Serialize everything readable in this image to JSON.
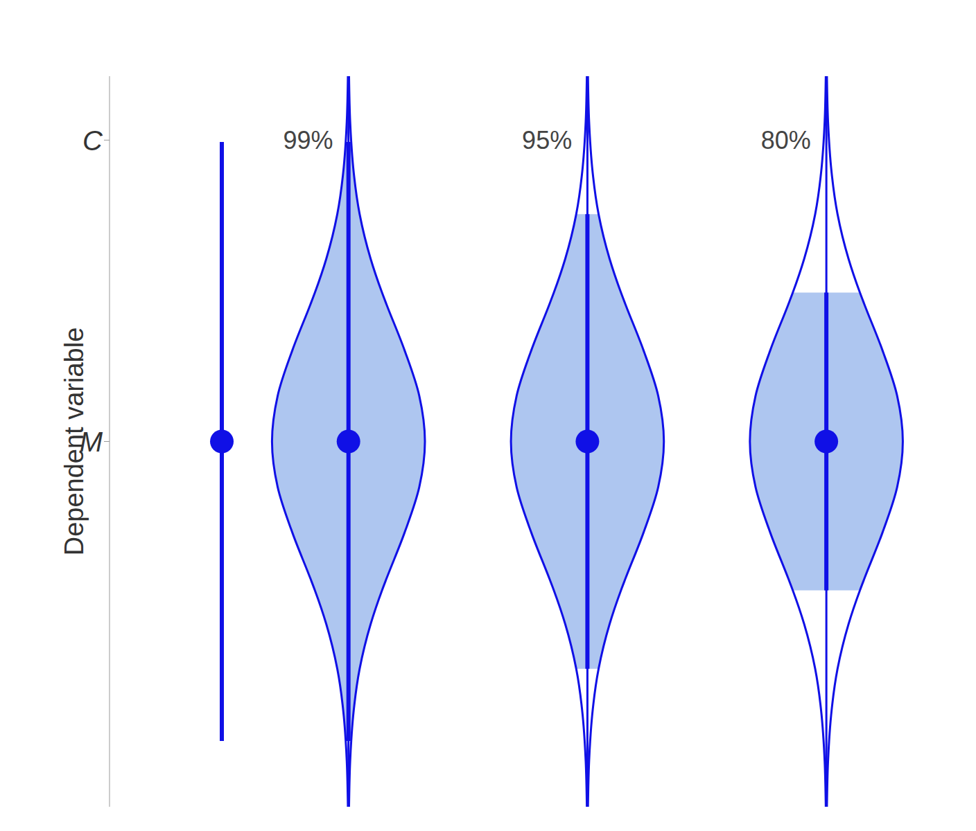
{
  "chart_data": {
    "type": "cat_eye",
    "y_label": "Dependent variable",
    "ylim": [
      -4,
      4
    ],
    "yticks": [
      {
        "value": 0,
        "label": "M"
      },
      {
        "value": -3.3,
        "label": "C"
      }
    ],
    "mean": 0,
    "color": "#1010e6",
    "marker": "circle",
    "intervals": [
      {
        "label": null,
        "moe": 3.28,
        "cat_eye": false
      },
      {
        "label": "99%",
        "moe": 3.28,
        "cat_eye": true
      },
      {
        "label": "95%",
        "moe": 2.49,
        "cat_eye": true
      },
      {
        "label": "80%",
        "moe": 1.63,
        "cat_eye": true
      }
    ],
    "profile": {
      "offset": [
        -4,
        -3.5,
        -3.28,
        -3,
        -2.49,
        -2,
        -1.63,
        -1.5,
        -1,
        -0.5,
        0,
        0.5,
        1,
        1.5,
        1.63,
        2,
        2.49,
        3,
        3.28,
        3.5,
        4
      ],
      "relative_width": [
        0.007,
        0.022,
        0.036,
        0.062,
        0.146,
        0.29,
        0.439,
        0.498,
        0.733,
        0.926,
        1,
        0.926,
        0.733,
        0.498,
        0.439,
        0.29,
        0.146,
        0.062,
        0.036,
        0.022,
        0.007
      ]
    }
  }
}
